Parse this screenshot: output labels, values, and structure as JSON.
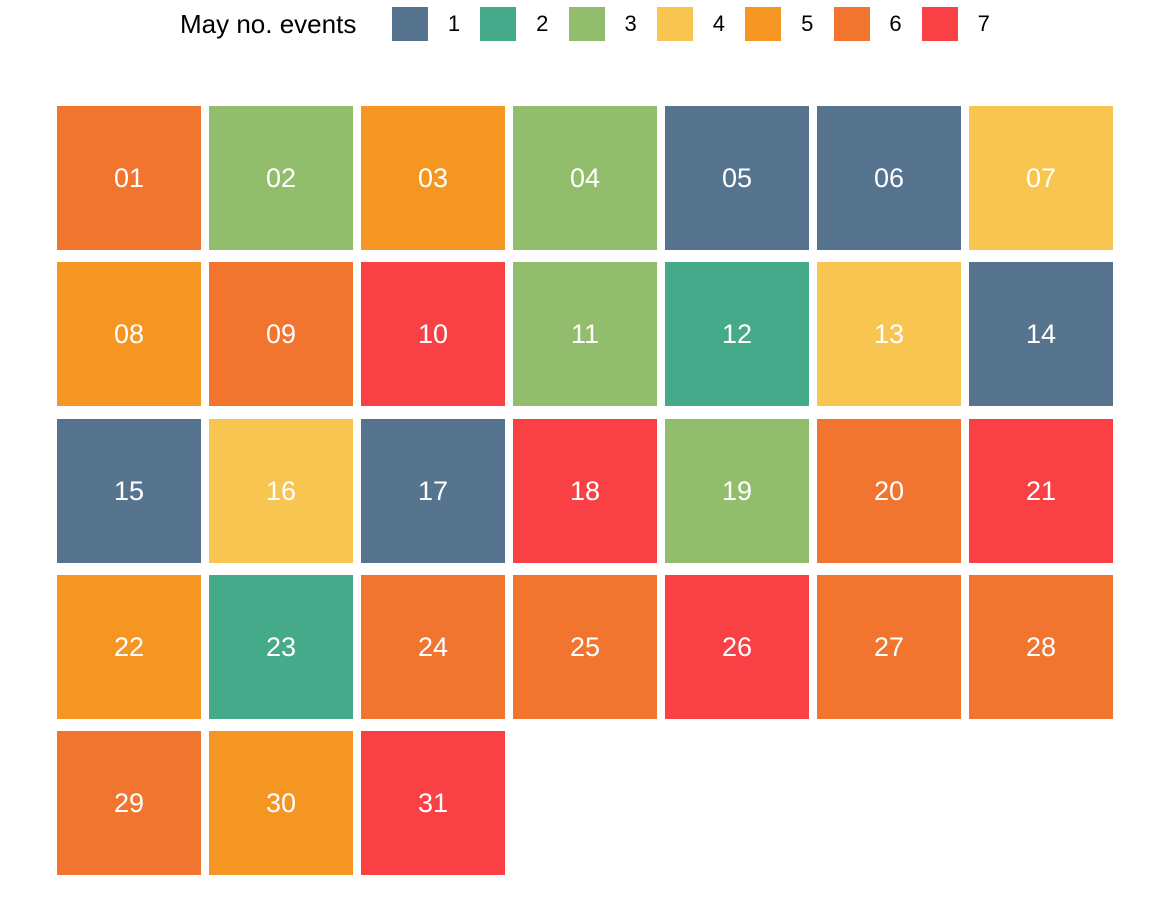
{
  "chart_data": {
    "type": "heatmap",
    "legend": {
      "title": "May no. events",
      "placement": "top",
      "levels": [
        {
          "label": "1",
          "value": 1,
          "color": "#57748F"
        },
        {
          "label": "2",
          "value": 2,
          "color": "#44AA8A"
        },
        {
          "label": "3",
          "value": 3,
          "color": "#92BD6D"
        },
        {
          "label": "4",
          "value": 4,
          "color": "#F8C650"
        },
        {
          "label": "5",
          "value": 5,
          "color": "#F69622"
        },
        {
          "label": "6",
          "value": 6,
          "color": "#F1742F"
        },
        {
          "label": "7",
          "value": 7,
          "color": "#F94045"
        }
      ]
    },
    "month": "May",
    "columns_per_row": 7,
    "days": [
      {
        "label": "01",
        "events": 6
      },
      {
        "label": "02",
        "events": 3
      },
      {
        "label": "03",
        "events": 5
      },
      {
        "label": "04",
        "events": 3
      },
      {
        "label": "05",
        "events": 1
      },
      {
        "label": "06",
        "events": 1
      },
      {
        "label": "07",
        "events": 4
      },
      {
        "label": "08",
        "events": 5
      },
      {
        "label": "09",
        "events": 6
      },
      {
        "label": "10",
        "events": 7
      },
      {
        "label": "11",
        "events": 3
      },
      {
        "label": "12",
        "events": 2
      },
      {
        "label": "13",
        "events": 4
      },
      {
        "label": "14",
        "events": 1
      },
      {
        "label": "15",
        "events": 1
      },
      {
        "label": "16",
        "events": 4
      },
      {
        "label": "17",
        "events": 1
      },
      {
        "label": "18",
        "events": 7
      },
      {
        "label": "19",
        "events": 3
      },
      {
        "label": "20",
        "events": 6
      },
      {
        "label": "21",
        "events": 7
      },
      {
        "label": "22",
        "events": 5
      },
      {
        "label": "23",
        "events": 2
      },
      {
        "label": "24",
        "events": 6
      },
      {
        "label": "25",
        "events": 6
      },
      {
        "label": "26",
        "events": 7
      },
      {
        "label": "27",
        "events": 6
      },
      {
        "label": "28",
        "events": 6
      },
      {
        "label": "29",
        "events": 6
      },
      {
        "label": "30",
        "events": 5
      },
      {
        "label": "31",
        "events": 7
      }
    ]
  }
}
